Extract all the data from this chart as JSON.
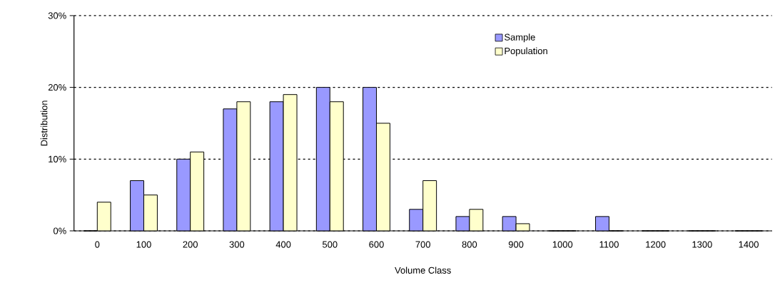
{
  "chart_data": {
    "type": "bar",
    "xlabel": "Volume Class",
    "ylabel": "Distribution",
    "categories": [
      "0",
      "100",
      "200",
      "300",
      "400",
      "500",
      "600",
      "700",
      "800",
      "900",
      "1000",
      "1100",
      "1200",
      "1300",
      "1400"
    ],
    "series": [
      {
        "name": "Sample",
        "color": "#9999ff",
        "values": [
          0,
          7,
          10,
          17,
          18,
          20,
          20,
          3,
          2,
          2,
          0,
          2,
          0,
          0,
          0
        ]
      },
      {
        "name": "Population",
        "color": "#ffffcc",
        "values": [
          4,
          5,
          11,
          18,
          19,
          18,
          15,
          7,
          3,
          1,
          0,
          0,
          0,
          0,
          0
        ]
      }
    ],
    "ylim": [
      0,
      30
    ],
    "yticks": [
      {
        "value": 0,
        "label": "0%"
      },
      {
        "value": 10,
        "label": "10%"
      },
      {
        "value": 20,
        "label": "20%"
      },
      {
        "value": 30,
        "label": "30%"
      }
    ],
    "grid": "y",
    "legend": "top right"
  }
}
